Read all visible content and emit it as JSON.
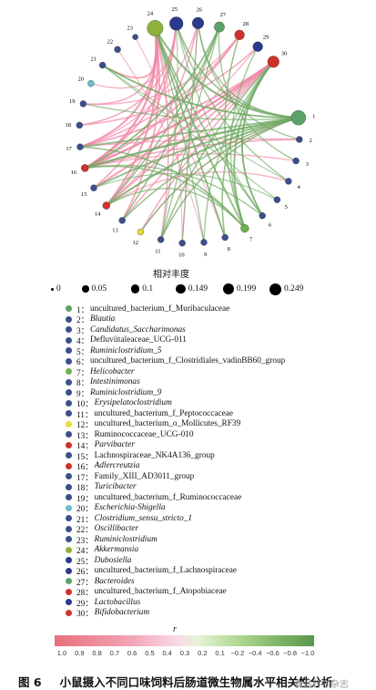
{
  "chart_data": {
    "type": "network",
    "nodes": [
      {
        "id": "1",
        "name": "uncultured_bacterium_f_Muribaculaceae",
        "italic": false,
        "color": "#5aa26a",
        "abundance": 0.2
      },
      {
        "id": "2",
        "name": "Blautia",
        "italic": true,
        "color": "#3a4f8c",
        "abundance": 0.01
      },
      {
        "id": "3",
        "name": "Candidatus_Saccharimonas",
        "italic": true,
        "color": "#3a4f8c",
        "abundance": 0.01
      },
      {
        "id": "4",
        "name": "Defluviitaleaceae_UCG-011",
        "italic": false,
        "color": "#3a4f8c",
        "abundance": 0.01
      },
      {
        "id": "5",
        "name": "Ruminiclostridium_5",
        "italic": true,
        "color": "#3a4f8c",
        "abundance": 0.01
      },
      {
        "id": "6",
        "name": "uncultured_bacterium_f_Clostridiales_vadinBB60_group",
        "italic": false,
        "color": "#3a4f8c",
        "abundance": 0.01
      },
      {
        "id": "7",
        "name": "Helicobacter",
        "italic": true,
        "color": "#6fb24a",
        "abundance": 0.03
      },
      {
        "id": "8",
        "name": "Intestinimonas",
        "italic": true,
        "color": "#3a4f8c",
        "abundance": 0.01
      },
      {
        "id": "9",
        "name": "Ruminiclostridium_9",
        "italic": true,
        "color": "#3a4f8c",
        "abundance": 0.01
      },
      {
        "id": "10",
        "name": "Erysipelatoclostridium",
        "italic": true,
        "color": "#3a4f8c",
        "abundance": 0.01
      },
      {
        "id": "11",
        "name": "uncultured_bacterium_f_Peptococcaceae",
        "italic": false,
        "color": "#3a4f8c",
        "abundance": 0.01
      },
      {
        "id": "12",
        "name": "uncultured_bacterium_o_Mollicutes_RF39",
        "italic": false,
        "color": "#e6dc34",
        "abundance": 0.01
      },
      {
        "id": "13",
        "name": "Ruminococcaceae_UCG-010",
        "italic": false,
        "color": "#3a4f8c",
        "abundance": 0.01
      },
      {
        "id": "14",
        "name": "Parvibacter",
        "italic": true,
        "color": "#d0312d",
        "abundance": 0.02
      },
      {
        "id": "15",
        "name": "Lachnospiraceae_NK4A136_group",
        "italic": false,
        "color": "#3a4f8c",
        "abundance": 0.01
      },
      {
        "id": "16",
        "name": "Adlercreutzia",
        "italic": true,
        "color": "#d0312d",
        "abundance": 0.02
      },
      {
        "id": "17",
        "name": "Family_XIII_AD3011_group",
        "italic": false,
        "color": "#3a4f8c",
        "abundance": 0.01
      },
      {
        "id": "18",
        "name": "Turicibacter",
        "italic": true,
        "color": "#3a4f8c",
        "abundance": 0.01
      },
      {
        "id": "19",
        "name": "uncultured_bacterium_f_Ruminococcaceae",
        "italic": false,
        "color": "#3a4f8c",
        "abundance": 0.01
      },
      {
        "id": "20",
        "name": "Escherichia-Shigella",
        "italic": true,
        "color": "#6bbfc9",
        "abundance": 0.01
      },
      {
        "id": "21",
        "name": "Clostridium_sensu_stricto_1",
        "italic": true,
        "color": "#3a4f8c",
        "abundance": 0.01
      },
      {
        "id": "22",
        "name": "Oscillibacter",
        "italic": true,
        "color": "#3a4f8c",
        "abundance": 0.01
      },
      {
        "id": "23",
        "name": "Ruminiclostridium",
        "italic": true,
        "color": "#3a4f8c",
        "abundance": 0.005
      },
      {
        "id": "24",
        "name": "Akkermansia",
        "italic": true,
        "color": "#8db13a",
        "abundance": 0.249
      },
      {
        "id": "25",
        "name": "Dubosiella",
        "italic": true,
        "color": "#2b3a8c",
        "abundance": 0.16
      },
      {
        "id": "26",
        "name": "uncultured_bacterium_f_Lachnospiraceae",
        "italic": false,
        "color": "#2b3a8c",
        "abundance": 0.1
      },
      {
        "id": "27",
        "name": "Bacteroides",
        "italic": true,
        "color": "#5aa26a",
        "abundance": 0.07
      },
      {
        "id": "28",
        "name": "uncultured_bacterium_f_Atopobiaceae",
        "italic": false,
        "color": "#d0312d",
        "abundance": 0.06
      },
      {
        "id": "29",
        "name": "Lactobacillus",
        "italic": true,
        "color": "#2b3a8c",
        "abundance": 0.06
      },
      {
        "id": "30",
        "name": "Bifidobacterium",
        "italic": true,
        "color": "#d0312d",
        "abundance": 0.1
      }
    ],
    "edges": [
      [
        "24",
        "16",
        0.8
      ],
      [
        "24",
        "14",
        0.7
      ],
      [
        "24",
        "17",
        0.7
      ],
      [
        "24",
        "13",
        0.6
      ],
      [
        "24",
        "11",
        0.5
      ],
      [
        "24",
        "21",
        0.6
      ],
      [
        "24",
        "19",
        0.5
      ],
      [
        "25",
        "16",
        0.6
      ],
      [
        "25",
        "15",
        0.5
      ],
      [
        "25",
        "18",
        0.5
      ],
      [
        "25",
        "20",
        0.4
      ],
      [
        "26",
        "14",
        0.5
      ],
      [
        "26",
        "17",
        0.4
      ],
      [
        "26",
        "10",
        0.4
      ],
      [
        "30",
        "16",
        0.9
      ],
      [
        "30",
        "15",
        0.7
      ],
      [
        "30",
        "17",
        0.6
      ],
      [
        "30",
        "14",
        0.6
      ],
      [
        "30",
        "12",
        0.5
      ],
      [
        "30",
        "13",
        0.5
      ],
      [
        "28",
        "16",
        0.6
      ],
      [
        "28",
        "17",
        0.5
      ],
      [
        "28",
        "19",
        0.4
      ],
      [
        "29",
        "18",
        0.5
      ],
      [
        "29",
        "14",
        0.4
      ],
      [
        "16",
        "2",
        0.5
      ],
      [
        "16",
        "3",
        0.4
      ],
      [
        "17",
        "2",
        0.4
      ],
      [
        "14",
        "4",
        0.4
      ],
      [
        "9",
        "22",
        0.3
      ],
      [
        "8",
        "23",
        0.3
      ],
      [
        "10",
        "24",
        0.3
      ],
      [
        "12",
        "1",
        0.4
      ],
      [
        "24",
        "1",
        -0.7
      ],
      [
        "24",
        "7",
        -0.6
      ],
      [
        "24",
        "8",
        -0.5
      ],
      [
        "24",
        "9",
        -0.4
      ],
      [
        "24",
        "6",
        -0.5
      ],
      [
        "25",
        "1",
        -0.5
      ],
      [
        "25",
        "4",
        -0.4
      ],
      [
        "26",
        "1",
        -0.4
      ],
      [
        "30",
        "7",
        -0.6
      ],
      [
        "30",
        "8",
        -0.5
      ],
      [
        "30",
        "11",
        -0.5
      ],
      [
        "30",
        "6",
        -0.6
      ],
      [
        "30",
        "9",
        -0.4
      ],
      [
        "1",
        "16",
        -0.8
      ],
      [
        "1",
        "14",
        -0.7
      ],
      [
        "1",
        "17",
        -0.6
      ],
      [
        "1",
        "15",
        -0.6
      ],
      [
        "1",
        "13",
        -0.5
      ],
      [
        "1",
        "11",
        -0.5
      ],
      [
        "1",
        "12",
        -0.4
      ],
      [
        "1",
        "19",
        -0.4
      ],
      [
        "1",
        "21",
        -0.4
      ],
      [
        "27",
        "16",
        -0.6
      ],
      [
        "27",
        "14",
        -0.5
      ],
      [
        "27",
        "13",
        -0.5
      ],
      [
        "27",
        "11",
        -0.4
      ],
      [
        "7",
        "16",
        -0.5
      ],
      [
        "7",
        "17",
        -0.5
      ],
      [
        "7",
        "14",
        -0.4
      ],
      [
        "7",
        "28",
        -0.5
      ],
      [
        "7",
        "29",
        -0.4
      ],
      [
        "6",
        "16",
        -0.4
      ],
      [
        "6",
        "30",
        -0.4
      ],
      [
        "6",
        "25",
        -0.3
      ],
      [
        "5",
        "15",
        -0.3
      ],
      [
        "5",
        "21",
        -0.3
      ],
      [
        "2",
        "26",
        -0.4
      ],
      [
        "3",
        "27",
        -0.4
      ],
      [
        "4",
        "21",
        -0.3
      ],
      [
        "1",
        "21",
        -0.5
      ],
      [
        "8",
        "24",
        -0.3
      ],
      [
        "10",
        "26",
        -0.3
      ],
      [
        "11",
        "25",
        -0.3
      ]
    ],
    "size_legend_title": "相对丰度",
    "size_legend": [
      "0",
      "0.05",
      "0.1",
      "0.149",
      "0.199",
      "0.249"
    ],
    "colorbar_label": "r",
    "colorbar_ticks": [
      "1.0",
      "0.9",
      "0.8",
      "0.7",
      "0.6",
      "0.5",
      "0.4",
      "0.3",
      "0.2",
      "0.1",
      "−0.2",
      "−0.4",
      "−0.6",
      "−0.8",
      "−1.0"
    ],
    "colors": {
      "positive": "#f088a6",
      "negative": "#6ea860"
    }
  },
  "caption": {
    "figure": "图 6",
    "text": "小鼠摄入不同口味饲料后肠道微生物属水平相关性分析"
  },
  "watermark": "食品科学杂志"
}
